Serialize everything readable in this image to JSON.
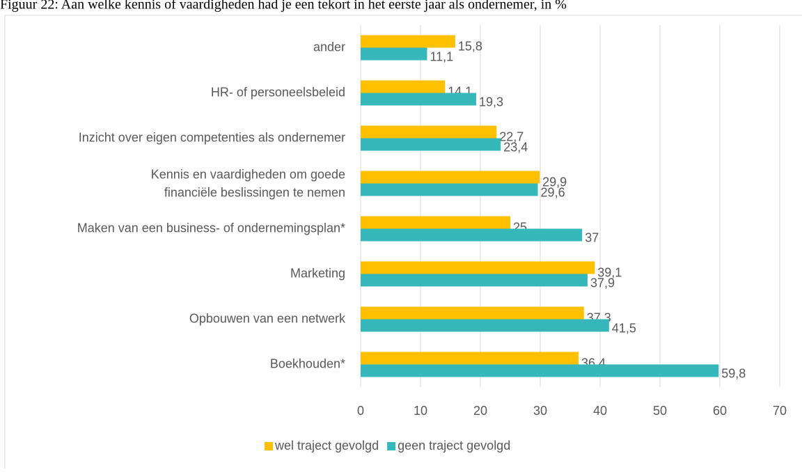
{
  "chart_data": {
    "type": "hbar",
    "title": "Figuur 22: Aan welke kennis of vaardigheden had je een tekort in het eerste jaar als ondernemer, in %",
    "categories": [
      "ander",
      "HR- of personeelsbeleid",
      "Inzicht over eigen competenties als ondernemer",
      "Kennis en vaardigheden om goede financiële beslissingen te nemen",
      "Maken van een business- of ondernemingsplan*",
      "Marketing",
      "Opbouwen van een netwerk",
      "Boekhouden*"
    ],
    "series": [
      {
        "name": "wel traject gevolgd",
        "color": "#ffc000",
        "values": [
          15.8,
          14.1,
          22.7,
          29.9,
          25,
          39.1,
          37.3,
          36.4
        ],
        "value_labels": [
          "15,8",
          "14,1",
          "22,7",
          "29,9",
          "25",
          "39,1",
          "37,3",
          "36,4"
        ]
      },
      {
        "name": "geen traject gevolgd",
        "color": "#36b8ba",
        "values": [
          11.1,
          19.3,
          23.4,
          29.6,
          37,
          37.9,
          41.5,
          59.8
        ],
        "value_labels": [
          "11,1",
          "19,3",
          "23,4",
          "29,6",
          "37",
          "37,9",
          "41,5",
          "59,8"
        ]
      }
    ],
    "xlim": [
      0,
      70
    ],
    "xticks": [
      0,
      10,
      20,
      30,
      40,
      50,
      60,
      70
    ],
    "grid": true,
    "legend": "bottom"
  }
}
